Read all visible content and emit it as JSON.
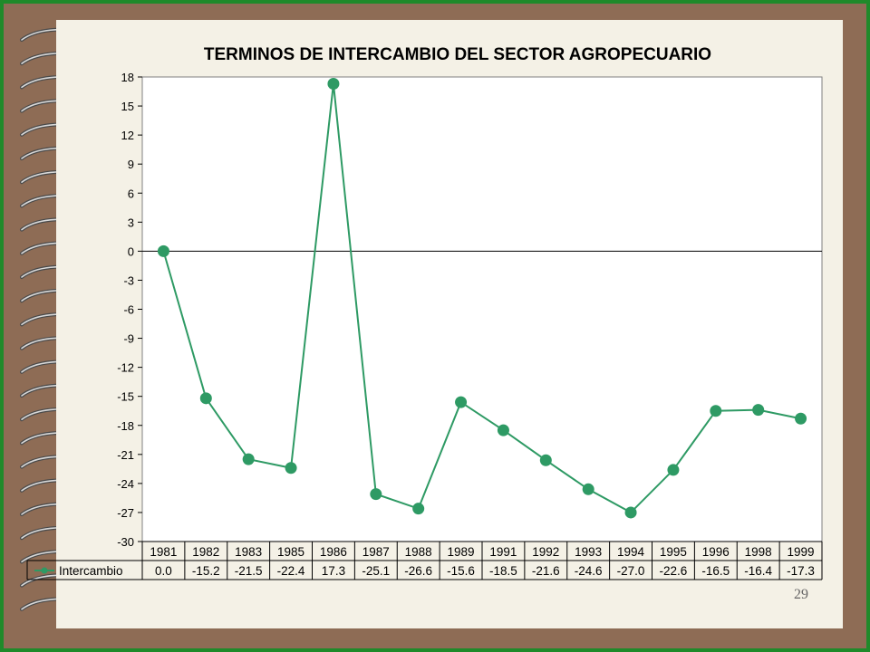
{
  "page_number": "29",
  "colors": {
    "series": "#2e9a64",
    "frame": "#8e6c55",
    "border": "#1f8a2a",
    "slide": "#f4f1e6"
  },
  "chart_data": {
    "type": "line",
    "title": "TERMINOS DE INTERCAMBIO DEL SECTOR AGROPECUARIO",
    "xlabel": "",
    "ylabel": "",
    "ylim": [
      -30,
      18
    ],
    "yticks": [
      "18",
      "15",
      "12",
      "9",
      "6",
      "3",
      "0",
      "-3",
      "-6",
      "-9",
      "-12",
      "-15",
      "-18",
      "-21",
      "-24",
      "-27",
      "-30"
    ],
    "grid": false,
    "legend": "data-table",
    "categories": [
      "1981",
      "1982",
      "1983",
      "1985",
      "1986",
      "1987",
      "1988",
      "1989",
      "1991",
      "1992",
      "1993",
      "1994",
      "1995",
      "1996",
      "1998",
      "1999"
    ],
    "series": [
      {
        "name": "Intercambio",
        "values": [
          0.0,
          -15.2,
          -21.5,
          -22.4,
          17.3,
          -25.1,
          -26.6,
          -15.6,
          -18.5,
          -21.6,
          -24.6,
          -27.0,
          -22.6,
          -16.5,
          -16.4,
          -17.3
        ],
        "labels": [
          "0.0",
          "-15.2",
          "-21.5",
          "-22.4",
          "17.3",
          "-25.1",
          "-26.6",
          "-15.6",
          "-18.5",
          "-21.6",
          "-24.6",
          "-27.0",
          "-22.6",
          "-16.5",
          "-16.4",
          "-17.3"
        ]
      }
    ]
  }
}
